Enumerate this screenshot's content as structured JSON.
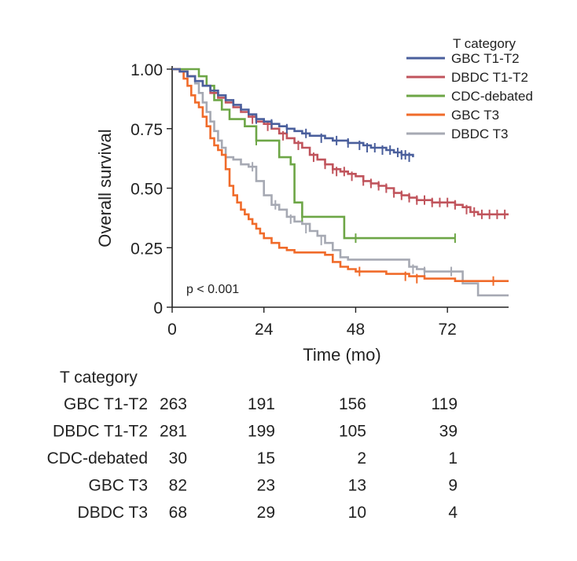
{
  "chart_data": {
    "type": "line",
    "xlabel": "Time (mo)",
    "ylabel": "Overall survival",
    "xlim": [
      0,
      88
    ],
    "ylim": [
      0,
      1.0
    ],
    "x_ticks": [
      0,
      24,
      48,
      72
    ],
    "y_ticks": [
      0,
      0.25,
      0.5,
      0.75,
      1.0
    ],
    "y_tick_labels": [
      "0",
      "0.25",
      "0.50",
      "0.75",
      "1.00"
    ],
    "grid": false,
    "annotation": "p < 0.001",
    "legend": {
      "title": "T category",
      "placement": "top-right"
    },
    "series": [
      {
        "name": "GBC T1-T2",
        "color": "#4a5f9c",
        "points": [
          [
            0,
            1.0
          ],
          [
            2,
            0.99
          ],
          [
            4,
            0.97
          ],
          [
            6,
            0.95
          ],
          [
            8,
            0.93
          ],
          [
            10,
            0.91
          ],
          [
            12,
            0.89
          ],
          [
            14,
            0.87
          ],
          [
            16,
            0.85
          ],
          [
            18,
            0.83
          ],
          [
            20,
            0.81
          ],
          [
            22,
            0.79
          ],
          [
            24,
            0.78
          ],
          [
            26,
            0.77
          ],
          [
            28,
            0.76
          ],
          [
            30,
            0.75
          ],
          [
            32,
            0.74
          ],
          [
            34,
            0.73
          ],
          [
            36,
            0.72
          ],
          [
            38,
            0.72
          ],
          [
            40,
            0.71
          ],
          [
            42,
            0.7
          ],
          [
            44,
            0.7
          ],
          [
            46,
            0.69
          ],
          [
            48,
            0.69
          ],
          [
            50,
            0.68
          ],
          [
            52,
            0.67
          ],
          [
            54,
            0.67
          ],
          [
            56,
            0.66
          ],
          [
            58,
            0.65
          ],
          [
            60,
            0.64
          ],
          [
            62,
            0.64
          ],
          [
            63,
            0.63
          ]
        ],
        "censored": [
          [
            22,
            0.79
          ],
          [
            26,
            0.77
          ],
          [
            30,
            0.75
          ],
          [
            35,
            0.73
          ],
          [
            39,
            0.71
          ],
          [
            43,
            0.7
          ],
          [
            46,
            0.69
          ],
          [
            49,
            0.68
          ],
          [
            51,
            0.67
          ],
          [
            53,
            0.67
          ],
          [
            55,
            0.66
          ],
          [
            57,
            0.66
          ],
          [
            59,
            0.65
          ],
          [
            60,
            0.64
          ],
          [
            61,
            0.64
          ],
          [
            62,
            0.63
          ]
        ]
      },
      {
        "name": "DBDC T1-T2",
        "color": "#c0545c",
        "points": [
          [
            0,
            1.0
          ],
          [
            2,
            0.99
          ],
          [
            4,
            0.97
          ],
          [
            6,
            0.95
          ],
          [
            8,
            0.93
          ],
          [
            10,
            0.9
          ],
          [
            12,
            0.88
          ],
          [
            14,
            0.86
          ],
          [
            16,
            0.84
          ],
          [
            18,
            0.82
          ],
          [
            20,
            0.8
          ],
          [
            22,
            0.78
          ],
          [
            24,
            0.77
          ],
          [
            26,
            0.75
          ],
          [
            28,
            0.73
          ],
          [
            30,
            0.71
          ],
          [
            32,
            0.69
          ],
          [
            34,
            0.67
          ],
          [
            36,
            0.64
          ],
          [
            38,
            0.62
          ],
          [
            40,
            0.6
          ],
          [
            42,
            0.58
          ],
          [
            44,
            0.57
          ],
          [
            46,
            0.56
          ],
          [
            48,
            0.55
          ],
          [
            50,
            0.53
          ],
          [
            52,
            0.52
          ],
          [
            54,
            0.51
          ],
          [
            56,
            0.5
          ],
          [
            58,
            0.48
          ],
          [
            60,
            0.47
          ],
          [
            62,
            0.46
          ],
          [
            64,
            0.45
          ],
          [
            66,
            0.45
          ],
          [
            68,
            0.44
          ],
          [
            70,
            0.44
          ],
          [
            72,
            0.44
          ],
          [
            74,
            0.43
          ],
          [
            76,
            0.42
          ],
          [
            78,
            0.4
          ],
          [
            80,
            0.39
          ],
          [
            82,
            0.39
          ],
          [
            84,
            0.39
          ],
          [
            86,
            0.39
          ],
          [
            88,
            0.39
          ]
        ],
        "censored": [
          [
            21,
            0.79
          ],
          [
            25,
            0.76
          ],
          [
            29,
            0.72
          ],
          [
            33,
            0.68
          ],
          [
            37,
            0.63
          ],
          [
            40,
            0.6
          ],
          [
            42,
            0.58
          ],
          [
            43,
            0.57
          ],
          [
            45,
            0.57
          ],
          [
            47,
            0.55
          ],
          [
            50,
            0.53
          ],
          [
            52,
            0.52
          ],
          [
            54,
            0.51
          ],
          [
            56,
            0.5
          ],
          [
            58,
            0.48
          ],
          [
            60,
            0.47
          ],
          [
            62,
            0.46
          ],
          [
            64,
            0.45
          ],
          [
            66,
            0.45
          ],
          [
            68,
            0.44
          ],
          [
            70,
            0.44
          ],
          [
            72,
            0.44
          ],
          [
            74,
            0.43
          ],
          [
            77,
            0.41
          ],
          [
            79,
            0.4
          ],
          [
            81,
            0.39
          ],
          [
            83,
            0.39
          ],
          [
            85,
            0.39
          ],
          [
            87,
            0.39
          ]
        ]
      },
      {
        "name": "CDC-debated",
        "color": "#6da646",
        "points": [
          [
            0,
            1.0
          ],
          [
            7,
            1.0
          ],
          [
            7,
            0.97
          ],
          [
            9,
            0.97
          ],
          [
            9,
            0.93
          ],
          [
            11,
            0.93
          ],
          [
            11,
            0.87
          ],
          [
            13,
            0.87
          ],
          [
            13,
            0.83
          ],
          [
            15,
            0.83
          ],
          [
            15,
            0.79
          ],
          [
            19,
            0.79
          ],
          [
            19,
            0.76
          ],
          [
            22,
            0.76
          ],
          [
            22,
            0.7
          ],
          [
            28,
            0.7
          ],
          [
            28,
            0.63
          ],
          [
            31,
            0.63
          ],
          [
            31,
            0.6
          ],
          [
            32,
            0.6
          ],
          [
            32,
            0.5
          ],
          [
            32,
            0.44
          ],
          [
            34,
            0.44
          ],
          [
            34,
            0.38
          ],
          [
            45,
            0.38
          ],
          [
            45,
            0.29
          ],
          [
            74,
            0.29
          ]
        ],
        "censored": [
          [
            22,
            0.7
          ],
          [
            34,
            0.38
          ],
          [
            48,
            0.29
          ],
          [
            74,
            0.29
          ]
        ]
      },
      {
        "name": "GBC T3",
        "color": "#f06b2a",
        "points": [
          [
            0,
            1.0
          ],
          [
            2,
            0.99
          ],
          [
            3,
            0.96
          ],
          [
            4,
            0.93
          ],
          [
            5,
            0.89
          ],
          [
            6,
            0.86
          ],
          [
            7,
            0.84
          ],
          [
            8,
            0.8
          ],
          [
            9,
            0.76
          ],
          [
            10,
            0.71
          ],
          [
            11,
            0.68
          ],
          [
            12,
            0.66
          ],
          [
            13,
            0.64
          ],
          [
            14,
            0.58
          ],
          [
            15,
            0.51
          ],
          [
            16,
            0.47
          ],
          [
            17,
            0.44
          ],
          [
            18,
            0.41
          ],
          [
            19,
            0.39
          ],
          [
            20,
            0.37
          ],
          [
            21,
            0.35
          ],
          [
            22,
            0.33
          ],
          [
            23,
            0.31
          ],
          [
            24,
            0.29
          ],
          [
            26,
            0.27
          ],
          [
            28,
            0.25
          ],
          [
            30,
            0.24
          ],
          [
            32,
            0.23
          ],
          [
            36,
            0.23
          ],
          [
            40,
            0.22
          ],
          [
            42,
            0.19
          ],
          [
            44,
            0.17
          ],
          [
            46,
            0.16
          ],
          [
            48,
            0.15
          ],
          [
            50,
            0.15
          ],
          [
            56,
            0.14
          ],
          [
            62,
            0.13
          ],
          [
            66,
            0.12
          ],
          [
            74,
            0.11
          ],
          [
            78,
            0.11
          ],
          [
            88,
            0.11
          ]
        ],
        "censored": [
          [
            49,
            0.15
          ],
          [
            61,
            0.13
          ],
          [
            64,
            0.12
          ],
          [
            84,
            0.11
          ]
        ]
      },
      {
        "name": "DBDC T3",
        "color": "#a6a9b3",
        "points": [
          [
            0,
            1.0
          ],
          [
            2,
            0.99
          ],
          [
            4,
            0.97
          ],
          [
            6,
            0.94
          ],
          [
            7,
            0.9
          ],
          [
            8,
            0.86
          ],
          [
            9,
            0.82
          ],
          [
            10,
            0.78
          ],
          [
            11,
            0.74
          ],
          [
            12,
            0.7
          ],
          [
            13,
            0.67
          ],
          [
            14,
            0.63
          ],
          [
            16,
            0.62
          ],
          [
            18,
            0.6
          ],
          [
            20,
            0.59
          ],
          [
            22,
            0.53
          ],
          [
            24,
            0.47
          ],
          [
            26,
            0.43
          ],
          [
            28,
            0.41
          ],
          [
            30,
            0.38
          ],
          [
            32,
            0.36
          ],
          [
            34,
            0.35
          ],
          [
            36,
            0.32
          ],
          [
            38,
            0.3
          ],
          [
            40,
            0.27
          ],
          [
            42,
            0.24
          ],
          [
            44,
            0.21
          ],
          [
            46,
            0.2
          ],
          [
            48,
            0.2
          ],
          [
            60,
            0.2
          ],
          [
            62,
            0.17
          ],
          [
            64,
            0.16
          ],
          [
            66,
            0.15
          ],
          [
            74,
            0.15
          ],
          [
            76,
            0.1
          ],
          [
            80,
            0.1
          ],
          [
            80,
            0.05
          ],
          [
            88,
            0.05
          ]
        ],
        "censored": [
          [
            21,
            0.59
          ],
          [
            27,
            0.43
          ],
          [
            31,
            0.37
          ],
          [
            35,
            0.33
          ],
          [
            39,
            0.28
          ],
          [
            63,
            0.16
          ],
          [
            66,
            0.15
          ],
          [
            73,
            0.15
          ]
        ]
      }
    ]
  },
  "risk_table": {
    "title": "T category",
    "rows": [
      {
        "label": "GBC T1-T2",
        "values": [
          "263",
          "191",
          "156",
          "119"
        ]
      },
      {
        "label": "DBDC T1-T2",
        "values": [
          "281",
          "199",
          "105",
          "39"
        ]
      },
      {
        "label": "CDC-debated",
        "values": [
          "30",
          "15",
          "2",
          "1"
        ]
      },
      {
        "label": "GBC T3",
        "values": [
          "82",
          "23",
          "13",
          "9"
        ]
      },
      {
        "label": "DBDC T3",
        "values": [
          "68",
          "29",
          "10",
          "4"
        ]
      }
    ]
  }
}
